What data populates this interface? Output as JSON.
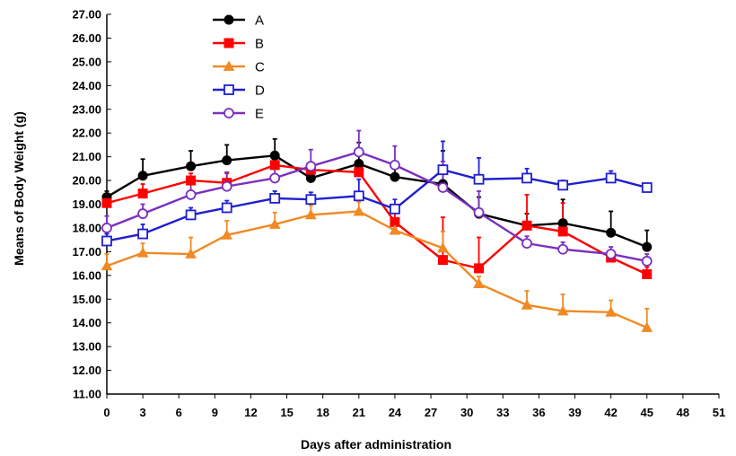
{
  "chart_data": {
    "type": "line",
    "title": "",
    "xlabel": "Days after administration",
    "ylabel": "Means of Body Weight (g)",
    "xlim": [
      0,
      51
    ],
    "ylim": [
      11,
      27
    ],
    "xticks": [
      "0",
      "3",
      "6",
      "9",
      "12",
      "15",
      "18",
      "21",
      "24",
      "27",
      "30",
      "33",
      "36",
      "39",
      "42",
      "45",
      "48",
      "51"
    ],
    "yticks": [
      "11.00",
      "12.00",
      "13.00",
      "14.00",
      "15.00",
      "16.00",
      "17.00",
      "18.00",
      "19.00",
      "20.00",
      "21.00",
      "22.00",
      "23.00",
      "24.00",
      "25.00",
      "26.00",
      "27.00"
    ],
    "legend_position": "top-left",
    "x": [
      0,
      3,
      7,
      10,
      14,
      17,
      21,
      24,
      28,
      31,
      35,
      38,
      42,
      45
    ],
    "series": [
      {
        "name": "A",
        "color": "#000000",
        "marker": "circle-filled",
        "values": [
          19.3,
          20.2,
          20.6,
          20.85,
          21.05,
          20.1,
          20.7,
          20.15,
          19.85,
          18.6,
          18.1,
          18.2,
          17.8,
          17.2
        ],
        "errors": [
          0.25,
          0.7,
          0.65,
          0.65,
          0.7,
          0.5,
          0.9,
          0.6,
          1.4,
          0.7,
          0.5,
          1.0,
          0.9,
          0.7
        ]
      },
      {
        "name": "B",
        "color": "#ff0000",
        "marker": "square-filled",
        "values": [
          19.05,
          19.45,
          20.0,
          19.9,
          20.65,
          20.45,
          20.35,
          18.25,
          16.65,
          16.3,
          18.1,
          17.85,
          16.75,
          16.05
        ],
        "errors": [
          0.3,
          0.4,
          0.3,
          0.4,
          0.25,
          0.3,
          0.5,
          0.7,
          1.8,
          1.3,
          1.3,
          1.2,
          0.3,
          0.3
        ]
      },
      {
        "name": "C",
        "color": "#f08a24",
        "marker": "triangle-filled",
        "values": [
          16.4,
          16.95,
          16.9,
          17.7,
          18.15,
          18.55,
          18.7,
          17.9,
          17.15,
          15.65,
          14.75,
          14.5,
          14.45,
          13.8
        ],
        "errors": [
          0.5,
          0.4,
          0.7,
          0.6,
          0.5,
          0.4,
          0.4,
          0.4,
          0.7,
          0.3,
          0.6,
          0.7,
          0.5,
          0.8
        ]
      },
      {
        "name": "D",
        "color": "#1f1fd0",
        "marker": "square-open",
        "values": [
          17.45,
          17.75,
          18.55,
          18.85,
          19.25,
          19.2,
          19.35,
          18.8,
          20.45,
          20.05,
          20.1,
          19.8,
          20.1,
          19.7
        ],
        "errors": [
          0.3,
          0.4,
          0.3,
          0.3,
          0.3,
          0.3,
          0.7,
          0.4,
          1.2,
          0.9,
          0.4,
          0.2,
          0.3,
          0.15
        ]
      },
      {
        "name": "E",
        "color": "#7b2fbf",
        "marker": "circle-open",
        "values": [
          18.0,
          18.6,
          19.4,
          19.75,
          20.1,
          20.6,
          21.2,
          20.65,
          19.7,
          18.65,
          17.35,
          17.1,
          16.9,
          16.6
        ],
        "errors": [
          0.5,
          0.4,
          0.5,
          0.6,
          0.4,
          0.7,
          0.9,
          0.8,
          1.1,
          0.9,
          0.3,
          0.3,
          0.3,
          0.3
        ]
      }
    ]
  }
}
